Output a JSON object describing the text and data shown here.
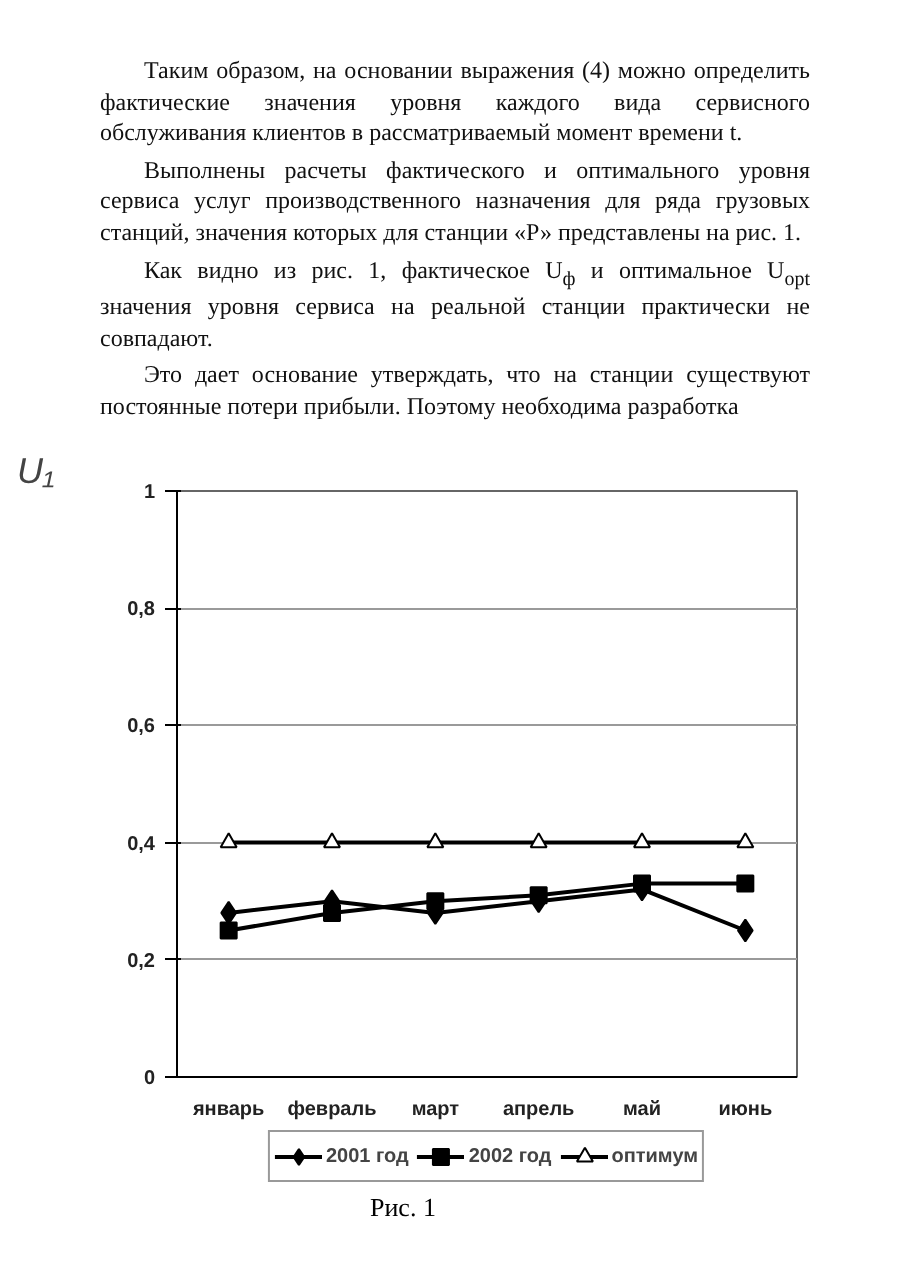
{
  "chart_data": {
    "type": "line",
    "ylabel": "U₁",
    "categories": [
      "январь",
      "февраль",
      "март",
      "апрель",
      "май",
      "июнь"
    ],
    "series": [
      {
        "name": "2001 год",
        "color": "#000000",
        "marker": "diamond",
        "values": [
          0.28,
          0.3,
          0.28,
          0.3,
          0.32,
          0.25
        ]
      },
      {
        "name": "2002 год",
        "color": "#000000",
        "marker": "square",
        "values": [
          0.25,
          0.28,
          0.3,
          0.31,
          0.33,
          0.33
        ]
      },
      {
        "name": "оптимум",
        "color": "#000000",
        "marker": "triangle",
        "values": [
          0.4,
          0.4,
          0.4,
          0.4,
          0.4,
          0.4
        ]
      }
    ],
    "ylim": [
      0,
      1
    ],
    "yticks": [
      0,
      {
        "value": 0.2,
        "label": "0,2"
      },
      {
        "value": 0.4,
        "label": "0,4"
      },
      {
        "value": 0.6,
        "label": "0,6"
      },
      {
        "value": 0.8,
        "label": "0,8"
      },
      1
    ],
    "grid": "y",
    "legend": "bottom",
    "line_style": "solid",
    "annotations": [
      "Таким образом, на основании выражения (4) можно определить фактические значения уровня каждого вида сервисного обслуживания клиентов в рассматриваемый момент времени t.",
      "Выполнены расчеты фактического и оптимального уровня сервиса услуг производственного назначения для ряда грузовых станций, значения которых для станции «Р» представлены на рис. 1.",
      "Как видно из рис. 1, фактическое U$_{ф}$ и оптимальное U$_{opt}$ значения уровня сервиса на реальной станции практически не совпадают.",
      "Это дает основание утверждать, что на станции существуют постоянные потери прибыли. Поэтому необходима разработка",
      "Рис. 1"
    ]
  }
}
